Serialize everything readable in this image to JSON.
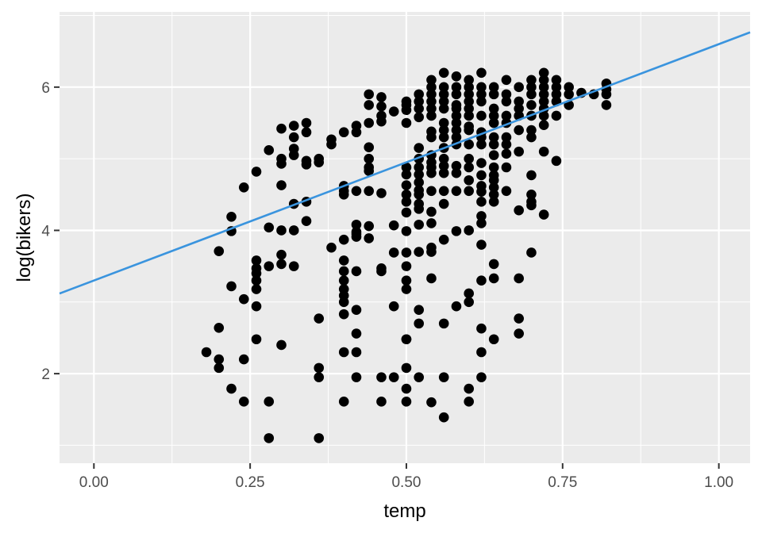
{
  "chart_data": {
    "type": "scatter",
    "title": "",
    "xlabel": "temp",
    "ylabel": "log(bikers)",
    "xlim": [
      -0.055,
      1.05
    ],
    "ylim": [
      0.75,
      7.05
    ],
    "x_ticks": [
      0.0,
      0.25,
      0.5,
      0.75,
      1.0
    ],
    "x_tick_labels": [
      "0.00",
      "0.25",
      "0.50",
      "0.75",
      "1.00"
    ],
    "y_ticks": [
      2,
      4,
      6
    ],
    "y_tick_labels": [
      "2",
      "4",
      "6"
    ],
    "grid": true,
    "panel_background": "#ebebeb",
    "point_color": "#000000",
    "line_color": "#3a94de",
    "fit_line": {
      "intercept": 3.3,
      "slope": 3.3
    },
    "points": [
      [
        0.18,
        2.3
      ],
      [
        0.2,
        3.71
      ],
      [
        0.2,
        2.64
      ],
      [
        0.2,
        2.2
      ],
      [
        0.2,
        2.08
      ],
      [
        0.22,
        4.19
      ],
      [
        0.22,
        3.99
      ],
      [
        0.22,
        3.22
      ],
      [
        0.22,
        1.79
      ],
      [
        0.24,
        4.6
      ],
      [
        0.24,
        3.04
      ],
      [
        0.24,
        2.2
      ],
      [
        0.24,
        1.61
      ],
      [
        0.26,
        4.82
      ],
      [
        0.26,
        3.58
      ],
      [
        0.26,
        3.47
      ],
      [
        0.26,
        3.4
      ],
      [
        0.26,
        3.3
      ],
      [
        0.26,
        3.18
      ],
      [
        0.26,
        2.94
      ],
      [
        0.26,
        2.48
      ],
      [
        0.28,
        5.12
      ],
      [
        0.28,
        4.04
      ],
      [
        0.28,
        3.5
      ],
      [
        0.28,
        1.61
      ],
      [
        0.28,
        1.1
      ],
      [
        0.3,
        5.42
      ],
      [
        0.3,
        5.0
      ],
      [
        0.3,
        4.93
      ],
      [
        0.3,
        4.63
      ],
      [
        0.3,
        4.0
      ],
      [
        0.3,
        3.66
      ],
      [
        0.3,
        3.53
      ],
      [
        0.3,
        2.4
      ],
      [
        0.32,
        5.46
      ],
      [
        0.32,
        5.3
      ],
      [
        0.32,
        5.14
      ],
      [
        0.32,
        5.05
      ],
      [
        0.32,
        4.37
      ],
      [
        0.32,
        4.0
      ],
      [
        0.32,
        3.5
      ],
      [
        0.34,
        5.5
      ],
      [
        0.34,
        5.37
      ],
      [
        0.34,
        4.97
      ],
      [
        0.34,
        4.92
      ],
      [
        0.34,
        4.4
      ],
      [
        0.34,
        4.13
      ],
      [
        0.36,
        5.0
      ],
      [
        0.36,
        4.95
      ],
      [
        0.36,
        2.77
      ],
      [
        0.36,
        2.08
      ],
      [
        0.36,
        1.95
      ],
      [
        0.36,
        1.1
      ],
      [
        0.38,
        5.27
      ],
      [
        0.38,
        5.2
      ],
      [
        0.38,
        3.76
      ],
      [
        0.4,
        5.37
      ],
      [
        0.4,
        4.62
      ],
      [
        0.4,
        4.55
      ],
      [
        0.4,
        4.5
      ],
      [
        0.4,
        3.87
      ],
      [
        0.4,
        3.58
      ],
      [
        0.4,
        3.43
      ],
      [
        0.4,
        3.3
      ],
      [
        0.4,
        3.18
      ],
      [
        0.4,
        3.09
      ],
      [
        0.4,
        3.0
      ],
      [
        0.4,
        2.83
      ],
      [
        0.4,
        2.3
      ],
      [
        0.4,
        1.61
      ],
      [
        0.42,
        5.46
      ],
      [
        0.42,
        5.37
      ],
      [
        0.42,
        4.55
      ],
      [
        0.42,
        4.08
      ],
      [
        0.42,
        3.98
      ],
      [
        0.42,
        3.95
      ],
      [
        0.42,
        3.91
      ],
      [
        0.42,
        3.43
      ],
      [
        0.42,
        2.89
      ],
      [
        0.42,
        2.56
      ],
      [
        0.42,
        2.3
      ],
      [
        0.42,
        1.95
      ],
      [
        0.44,
        5.9
      ],
      [
        0.44,
        5.75
      ],
      [
        0.44,
        5.5
      ],
      [
        0.44,
        5.16
      ],
      [
        0.44,
        5.0
      ],
      [
        0.44,
        4.88
      ],
      [
        0.44,
        4.83
      ],
      [
        0.44,
        4.55
      ],
      [
        0.44,
        4.06
      ],
      [
        0.44,
        3.89
      ],
      [
        0.46,
        5.86
      ],
      [
        0.46,
        5.73
      ],
      [
        0.46,
        5.6
      ],
      [
        0.46,
        5.52
      ],
      [
        0.46,
        4.52
      ],
      [
        0.46,
        3.47
      ],
      [
        0.46,
        3.43
      ],
      [
        0.46,
        1.95
      ],
      [
        0.46,
        1.61
      ],
      [
        0.48,
        5.66
      ],
      [
        0.48,
        4.07
      ],
      [
        0.48,
        3.69
      ],
      [
        0.48,
        2.94
      ],
      [
        0.48,
        1.95
      ],
      [
        0.5,
        5.8
      ],
      [
        0.5,
        5.75
      ],
      [
        0.5,
        5.68
      ],
      [
        0.5,
        5.5
      ],
      [
        0.5,
        4.88
      ],
      [
        0.5,
        4.78
      ],
      [
        0.5,
        4.63
      ],
      [
        0.5,
        4.5
      ],
      [
        0.5,
        4.4
      ],
      [
        0.5,
        4.25
      ],
      [
        0.5,
        3.99
      ],
      [
        0.5,
        3.69
      ],
      [
        0.5,
        3.5
      ],
      [
        0.5,
        3.3
      ],
      [
        0.5,
        3.18
      ],
      [
        0.5,
        2.48
      ],
      [
        0.5,
        2.48
      ],
      [
        0.5,
        2.08
      ],
      [
        0.5,
        1.79
      ],
      [
        0.5,
        1.61
      ],
      [
        0.52,
        5.9
      ],
      [
        0.52,
        5.8
      ],
      [
        0.52,
        5.7
      ],
      [
        0.52,
        5.58
      ],
      [
        0.52,
        5.15
      ],
      [
        0.52,
        5.0
      ],
      [
        0.52,
        4.88
      ],
      [
        0.52,
        4.78
      ],
      [
        0.52,
        4.67
      ],
      [
        0.52,
        4.56
      ],
      [
        0.52,
        4.5
      ],
      [
        0.52,
        4.37
      ],
      [
        0.52,
        4.3
      ],
      [
        0.52,
        4.08
      ],
      [
        0.52,
        3.7
      ],
      [
        0.52,
        2.89
      ],
      [
        0.52,
        2.7
      ],
      [
        0.52,
        1.95
      ],
      [
        0.54,
        6.1
      ],
      [
        0.54,
        6.0
      ],
      [
        0.54,
        5.9
      ],
      [
        0.54,
        5.8
      ],
      [
        0.54,
        5.7
      ],
      [
        0.54,
        5.6
      ],
      [
        0.54,
        5.38
      ],
      [
        0.54,
        5.3
      ],
      [
        0.54,
        5.05
      ],
      [
        0.54,
        4.95
      ],
      [
        0.54,
        4.88
      ],
      [
        0.54,
        4.8
      ],
      [
        0.54,
        4.55
      ],
      [
        0.54,
        4.26
      ],
      [
        0.54,
        4.1
      ],
      [
        0.54,
        3.76
      ],
      [
        0.54,
        3.7
      ],
      [
        0.54,
        3.33
      ],
      [
        0.54,
        1.6
      ],
      [
        0.56,
        6.2
      ],
      [
        0.56,
        6.0
      ],
      [
        0.56,
        5.9
      ],
      [
        0.56,
        5.8
      ],
      [
        0.56,
        5.7
      ],
      [
        0.56,
        5.5
      ],
      [
        0.56,
        5.4
      ],
      [
        0.56,
        5.3
      ],
      [
        0.56,
        5.15
      ],
      [
        0.56,
        5.0
      ],
      [
        0.56,
        4.9
      ],
      [
        0.56,
        4.8
      ],
      [
        0.56,
        4.55
      ],
      [
        0.56,
        4.37
      ],
      [
        0.56,
        3.87
      ],
      [
        0.56,
        2.7
      ],
      [
        0.56,
        1.95
      ],
      [
        0.56,
        1.39
      ],
      [
        0.58,
        6.15
      ],
      [
        0.58,
        6.0
      ],
      [
        0.58,
        5.9
      ],
      [
        0.58,
        5.75
      ],
      [
        0.58,
        5.7
      ],
      [
        0.58,
        5.6
      ],
      [
        0.58,
        5.5
      ],
      [
        0.58,
        5.4
      ],
      [
        0.58,
        5.3
      ],
      [
        0.58,
        5.2
      ],
      [
        0.58,
        4.9
      ],
      [
        0.58,
        4.8
      ],
      [
        0.58,
        4.55
      ],
      [
        0.58,
        3.99
      ],
      [
        0.58,
        2.94
      ],
      [
        0.6,
        6.1
      ],
      [
        0.6,
        6.0
      ],
      [
        0.6,
        5.9
      ],
      [
        0.6,
        5.8
      ],
      [
        0.6,
        5.7
      ],
      [
        0.6,
        5.6
      ],
      [
        0.6,
        5.45
      ],
      [
        0.6,
        5.4
      ],
      [
        0.6,
        5.2
      ],
      [
        0.6,
        5.0
      ],
      [
        0.6,
        4.88
      ],
      [
        0.6,
        4.7
      ],
      [
        0.6,
        4.55
      ],
      [
        0.6,
        4.0
      ],
      [
        0.6,
        3.12
      ],
      [
        0.6,
        3.0
      ],
      [
        0.6,
        1.79
      ],
      [
        0.6,
        1.61
      ],
      [
        0.62,
        6.2
      ],
      [
        0.62,
        6.0
      ],
      [
        0.62,
        5.9
      ],
      [
        0.62,
        5.8
      ],
      [
        0.62,
        5.6
      ],
      [
        0.62,
        5.37
      ],
      [
        0.62,
        5.3
      ],
      [
        0.62,
        5.2
      ],
      [
        0.62,
        4.94
      ],
      [
        0.62,
        4.77
      ],
      [
        0.62,
        4.62
      ],
      [
        0.62,
        4.54
      ],
      [
        0.62,
        4.4
      ],
      [
        0.62,
        4.2
      ],
      [
        0.62,
        4.1
      ],
      [
        0.62,
        3.8
      ],
      [
        0.62,
        3.3
      ],
      [
        0.62,
        2.63
      ],
      [
        0.62,
        2.3
      ],
      [
        0.62,
        1.95
      ],
      [
        0.64,
        6.0
      ],
      [
        0.64,
        5.9
      ],
      [
        0.64,
        5.7
      ],
      [
        0.64,
        5.6
      ],
      [
        0.64,
        5.5
      ],
      [
        0.64,
        5.3
      ],
      [
        0.64,
        5.2
      ],
      [
        0.64,
        5.05
      ],
      [
        0.64,
        4.88
      ],
      [
        0.64,
        4.77
      ],
      [
        0.64,
        4.7
      ],
      [
        0.64,
        4.6
      ],
      [
        0.64,
        4.5
      ],
      [
        0.64,
        4.4
      ],
      [
        0.64,
        3.53
      ],
      [
        0.64,
        3.33
      ],
      [
        0.64,
        2.48
      ],
      [
        0.66,
        6.1
      ],
      [
        0.66,
        5.9
      ],
      [
        0.66,
        5.8
      ],
      [
        0.66,
        5.6
      ],
      [
        0.66,
        5.5
      ],
      [
        0.66,
        5.3
      ],
      [
        0.66,
        5.2
      ],
      [
        0.66,
        5.07
      ],
      [
        0.66,
        4.88
      ],
      [
        0.66,
        4.55
      ],
      [
        0.68,
        6.0
      ],
      [
        0.68,
        5.8
      ],
      [
        0.68,
        5.7
      ],
      [
        0.68,
        5.6
      ],
      [
        0.68,
        5.4
      ],
      [
        0.68,
        5.1
      ],
      [
        0.68,
        4.28
      ],
      [
        0.68,
        3.33
      ],
      [
        0.68,
        2.77
      ],
      [
        0.68,
        2.56
      ],
      [
        0.7,
        6.1
      ],
      [
        0.7,
        6.0
      ],
      [
        0.7,
        5.9
      ],
      [
        0.7,
        5.75
      ],
      [
        0.7,
        5.6
      ],
      [
        0.7,
        5.4
      ],
      [
        0.7,
        5.3
      ],
      [
        0.7,
        4.77
      ],
      [
        0.7,
        4.5
      ],
      [
        0.7,
        4.4
      ],
      [
        0.7,
        4.35
      ],
      [
        0.7,
        3.69
      ],
      [
        0.72,
        6.2
      ],
      [
        0.72,
        6.1
      ],
      [
        0.72,
        6.0
      ],
      [
        0.72,
        5.9
      ],
      [
        0.72,
        5.8
      ],
      [
        0.72,
        5.7
      ],
      [
        0.72,
        5.6
      ],
      [
        0.72,
        5.47
      ],
      [
        0.72,
        5.1
      ],
      [
        0.72,
        4.22
      ],
      [
        0.74,
        6.1
      ],
      [
        0.74,
        6.0
      ],
      [
        0.74,
        5.9
      ],
      [
        0.74,
        5.8
      ],
      [
        0.74,
        5.6
      ],
      [
        0.74,
        4.97
      ],
      [
        0.76,
        6.0
      ],
      [
        0.76,
        5.9
      ],
      [
        0.76,
        5.75
      ],
      [
        0.78,
        5.92
      ],
      [
        0.8,
        5.9
      ],
      [
        0.82,
        6.05
      ],
      [
        0.82,
        5.97
      ],
      [
        0.82,
        5.9
      ],
      [
        0.82,
        5.75
      ]
    ]
  }
}
